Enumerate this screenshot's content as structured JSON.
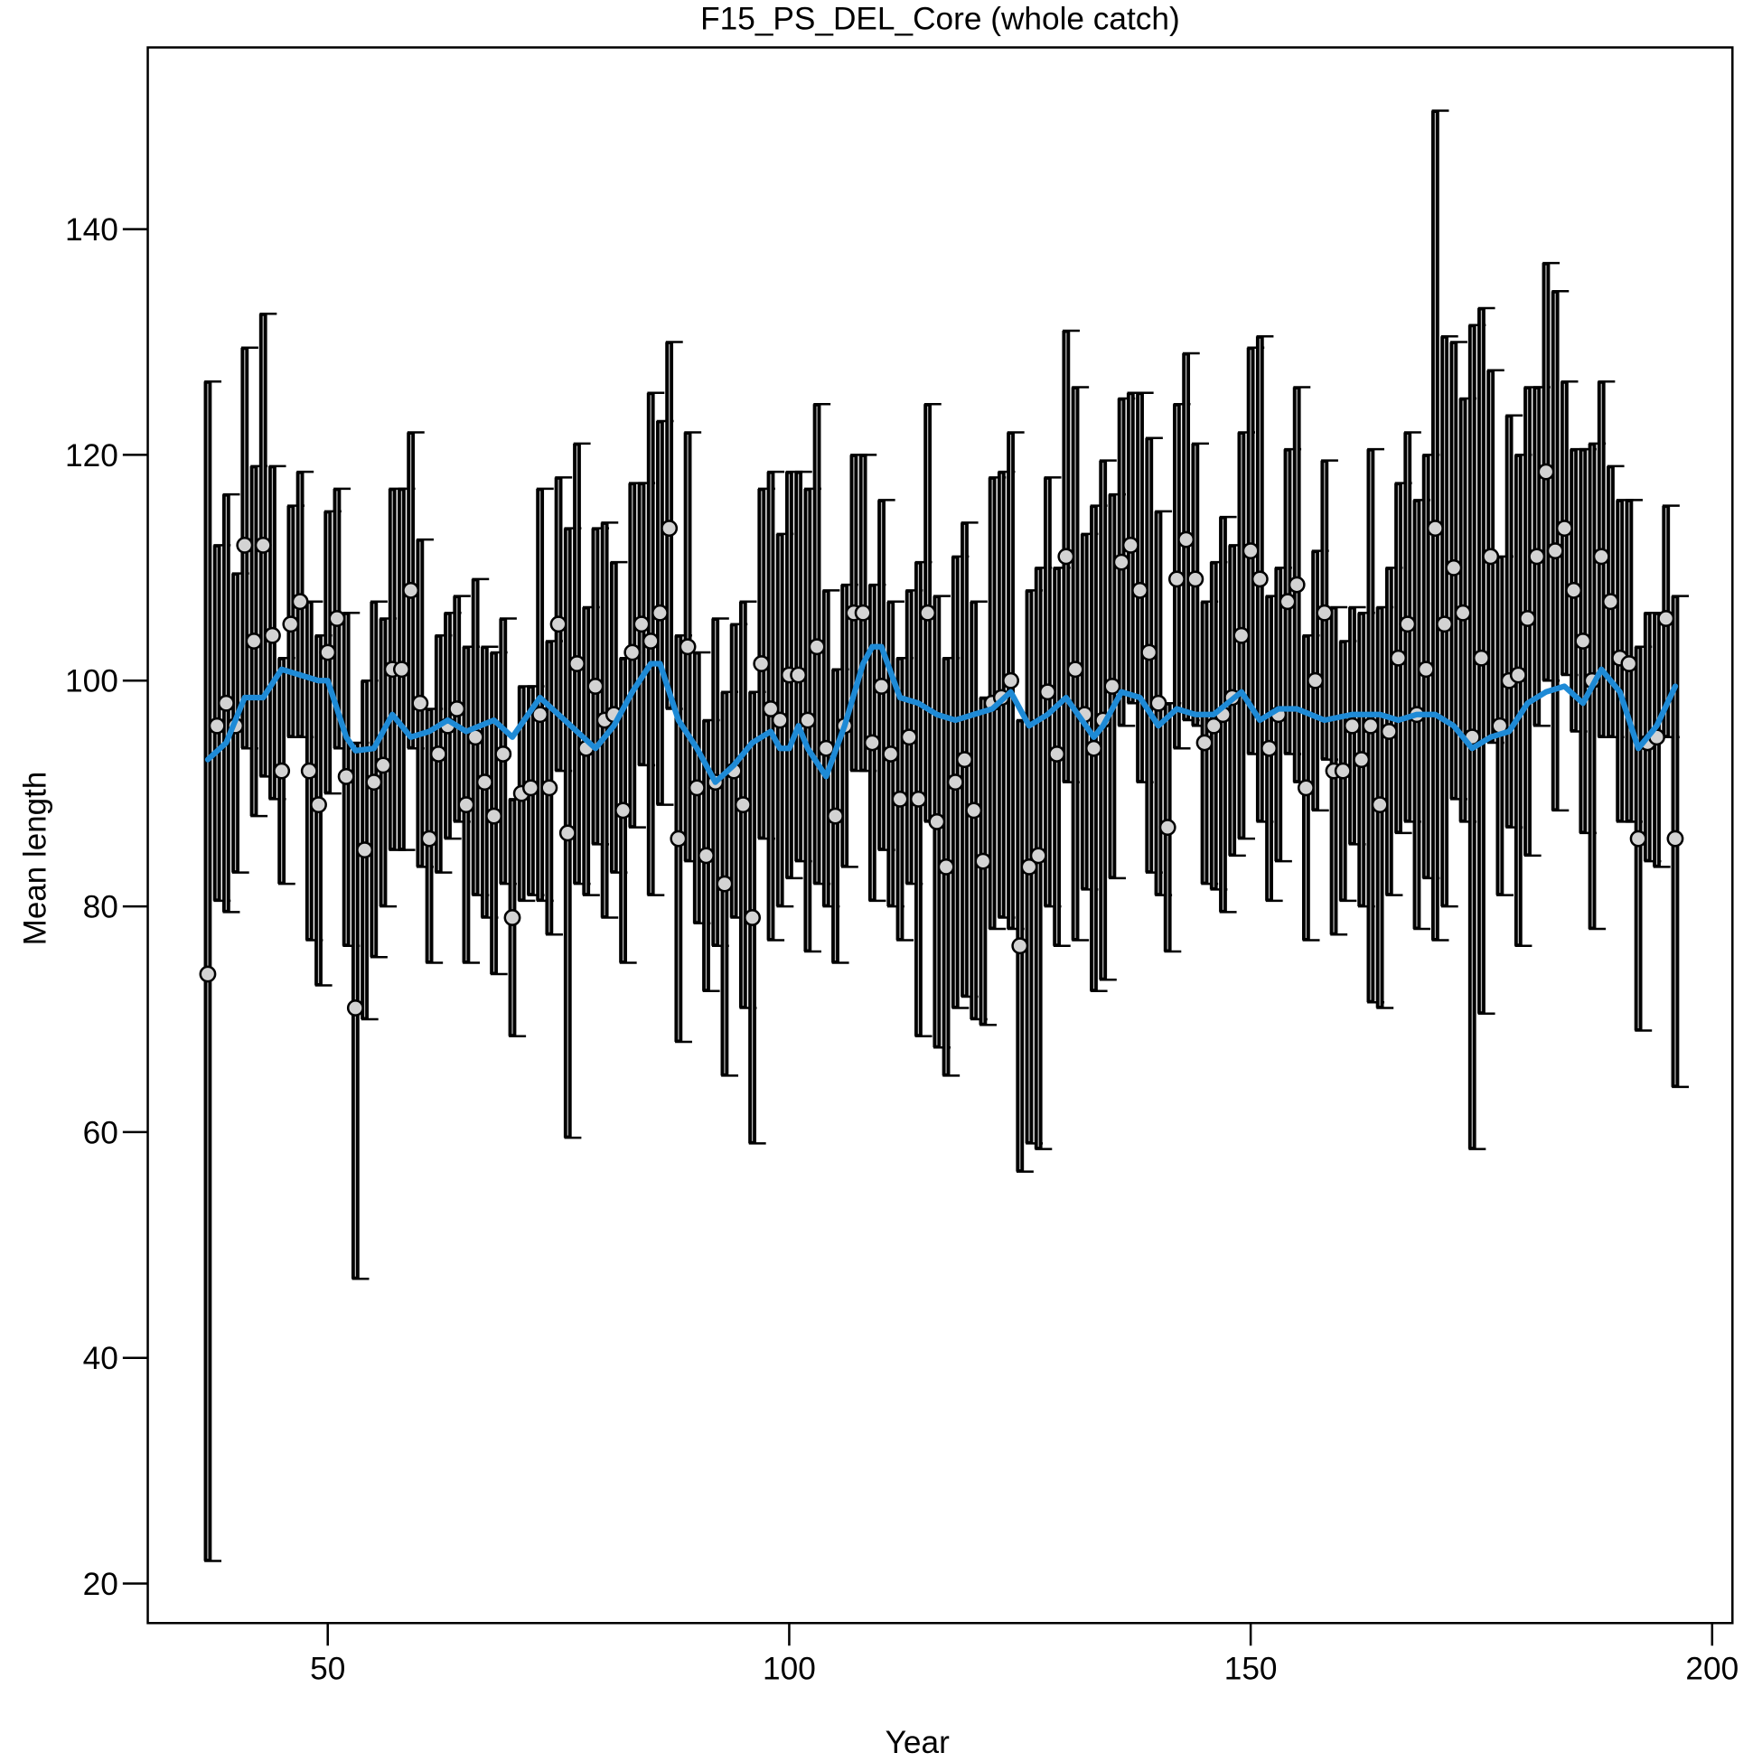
{
  "chart_data": {
    "type": "errorbar",
    "title": "F15_PS_DEL_Core (whole catch)",
    "x_label": "Year",
    "y_label": "Mean length",
    "color": "#000000",
    "point_color": "#d3d3d3",
    "x": [
      37,
      38,
      39,
      40,
      41,
      42,
      43,
      44,
      45,
      46,
      47,
      48,
      49,
      50,
      51,
      52,
      53,
      54,
      55,
      56,
      57,
      58,
      59,
      60,
      61,
      62,
      63,
      64,
      65,
      66,
      67,
      68,
      69,
      70,
      71,
      72,
      73,
      74,
      75,
      76,
      77,
      78,
      79,
      80,
      81,
      82,
      83,
      84,
      85,
      86,
      87,
      88,
      89,
      90,
      91,
      92,
      93,
      94,
      95,
      96,
      97,
      98,
      99,
      100,
      101,
      102,
      103,
      104,
      105,
      106,
      107,
      108,
      109,
      110,
      111,
      112,
      113,
      114,
      115,
      116,
      117,
      118,
      119,
      120,
      121,
      122,
      123,
      124,
      125,
      126,
      127,
      128,
      129,
      130,
      131,
      132,
      133,
      134,
      135,
      136,
      137,
      138,
      139,
      140,
      141,
      142,
      143,
      144,
      145,
      146,
      147,
      148,
      149,
      150,
      151,
      152,
      153,
      154,
      155,
      156,
      157,
      158,
      159,
      160,
      161,
      162,
      163,
      164,
      165,
      166,
      167,
      168,
      169,
      170,
      171,
      172,
      173,
      174,
      175,
      176,
      177,
      178,
      179,
      180,
      181,
      182,
      183,
      184,
      185,
      186,
      187,
      188,
      189,
      190,
      191,
      192,
      193,
      194,
      195,
      196
    ],
    "values": [
      74,
      96,
      98,
      96,
      112,
      103.5,
      112,
      104,
      92,
      105,
      107,
      92,
      89,
      102.5,
      105.5,
      91.5,
      71,
      85,
      91,
      92.5,
      101,
      101,
      108,
      98,
      86,
      93.5,
      96,
      97.5,
      89,
      95,
      91,
      88,
      93.5,
      79,
      90,
      90.5,
      97,
      90.5,
      105,
      86.5,
      101.5,
      94,
      99.5,
      96.5,
      97,
      88.5,
      102.5,
      105,
      103.5,
      106,
      113.5,
      86,
      103,
      90.5,
      84.5,
      91,
      82,
      92,
      89,
      79,
      101.5,
      97.5,
      96.5,
      100.5,
      100.5,
      96.5,
      103,
      94,
      88,
      96,
      106,
      106,
      94.5,
      99.5,
      93.5,
      89.5,
      95,
      89.5,
      106,
      87.5,
      83.5,
      91,
      93,
      88.5,
      84,
      98,
      98.5,
      100,
      76.5,
      83.5,
      84.5,
      99,
      93.5,
      111,
      101,
      97,
      94,
      96.5,
      99.5,
      110.5,
      112,
      108,
      102.5,
      98,
      87,
      109,
      112.5,
      109,
      94.5,
      96,
      97,
      98.5,
      104,
      111.5,
      109,
      94,
      97,
      107,
      108.5,
      90.5,
      100,
      106,
      92,
      92,
      96,
      93,
      96,
      89,
      95.5,
      102,
      105,
      97,
      101,
      113.5,
      105,
      110,
      106,
      95,
      102,
      111,
      96,
      100,
      100.5,
      105.5,
      111,
      118.5,
      111.5,
      113.5,
      108,
      103.5,
      100,
      111,
      107,
      102,
      101.5,
      86,
      94.5,
      95,
      105.5,
      86
    ],
    "lower": [
      22,
      80.5,
      79.5,
      83,
      94,
      88,
      91.5,
      89.5,
      82,
      95,
      95,
      77,
      73,
      90,
      94,
      76.5,
      47,
      70,
      75.5,
      80,
      85,
      85,
      94,
      83.5,
      75,
      83,
      86,
      87.5,
      75,
      81,
      79,
      74,
      82,
      68.5,
      80.5,
      81,
      80.5,
      77.5,
      92,
      59.5,
      82,
      81,
      85.5,
      79,
      83,
      75,
      87,
      92.5,
      81,
      89,
      97.5,
      68,
      84,
      78.5,
      72.5,
      76.5,
      65,
      79,
      71,
      59,
      86,
      77,
      80,
      82.5,
      84,
      76,
      82,
      80,
      75,
      83.5,
      92,
      92,
      80.5,
      85,
      80,
      77,
      82,
      68.5,
      87.5,
      67.5,
      65,
      71,
      72,
      70,
      69.5,
      78,
      79,
      78,
      56.5,
      59,
      58.5,
      80,
      76.5,
      91,
      77,
      81.5,
      72.5,
      73.5,
      82.5,
      96,
      98,
      91,
      83,
      81,
      76,
      94,
      96.5,
      96,
      82,
      81.5,
      79.5,
      84.5,
      86,
      93.5,
      87.5,
      80.5,
      84,
      93.5,
      91,
      77,
      88.5,
      93,
      77.5,
      80.5,
      85.5,
      80,
      71.5,
      71,
      81,
      86.5,
      87.5,
      78,
      82.5,
      77,
      80,
      89.5,
      87.5,
      58.5,
      70.5,
      94.5,
      81,
      87,
      76.5,
      84.5,
      96,
      100,
      88.5,
      100.5,
      95.5,
      86.5,
      78,
      95,
      95,
      87.5,
      87.5,
      69,
      84,
      83.5,
      95,
      64
    ],
    "upper": [
      126.5,
      112,
      116.5,
      109.5,
      129.5,
      119,
      132.5,
      119,
      102,
      115.5,
      118.5,
      107,
      104,
      115,
      117,
      106,
      94.5,
      100,
      107,
      105.5,
      117,
      117,
      122,
      112.5,
      97.5,
      104,
      106,
      107.5,
      103,
      109,
      103,
      102.5,
      105.5,
      89.5,
      99.5,
      99.5,
      117,
      103.5,
      118,
      113.5,
      121,
      106.5,
      113.5,
      114,
      110.5,
      102,
      117.5,
      117.5,
      125.5,
      123,
      130,
      104,
      122,
      102.5,
      96.5,
      105.5,
      99,
      105,
      107,
      99,
      117,
      118.5,
      113,
      118.5,
      118.5,
      117,
      124.5,
      108,
      101,
      108.5,
      120,
      120,
      108.5,
      116,
      107,
      102,
      108,
      110.5,
      124.5,
      107.5,
      102,
      111,
      114,
      107,
      98.5,
      118,
      118.5,
      122,
      96.5,
      108,
      110,
      118,
      110,
      131,
      126,
      113,
      115.5,
      119.5,
      116.5,
      125,
      125.5,
      125.5,
      121.5,
      115,
      98,
      124.5,
      129,
      121,
      107,
      110.5,
      114.5,
      112,
      122,
      129.5,
      130.5,
      107.5,
      110,
      120.5,
      126,
      104,
      111.5,
      119.5,
      106.5,
      103.5,
      106.5,
      106,
      120.5,
      106.5,
      110,
      117.5,
      122,
      116,
      120,
      150.5,
      130.5,
      130,
      125,
      131.5,
      133,
      127.5,
      111,
      123.5,
      120,
      126,
      126,
      137,
      134.5,
      126.5,
      120.5,
      120.5,
      121,
      126.5,
      119,
      116,
      116,
      103,
      106,
      106,
      115.5,
      107.5
    ],
    "smooth": {
      "color": "#1e8ad6",
      "x": [
        37,
        39,
        41,
        43,
        45,
        47,
        49,
        50,
        52,
        53,
        55,
        57,
        59,
        61,
        63,
        65,
        68,
        70,
        73,
        75,
        77,
        79,
        81,
        83,
        85,
        86,
        88,
        90,
        92,
        94,
        96,
        98,
        99,
        100,
        101,
        102,
        104,
        106,
        108,
        109,
        110,
        112,
        114,
        116,
        118,
        120,
        122,
        124,
        126,
        128,
        130,
        133,
        134,
        136,
        138,
        140,
        142,
        144,
        146,
        149,
        151,
        153,
        155,
        158,
        161,
        164,
        166,
        168,
        170,
        172,
        174,
        176,
        178,
        180,
        182,
        184,
        186,
        188,
        190,
        192,
        194,
        196
      ],
      "values": [
        93,
        94.5,
        98.5,
        98.5,
        101,
        100.5,
        100,
        100,
        95,
        93.8,
        94,
        97,
        95,
        95.5,
        96.5,
        95.5,
        96.5,
        95,
        98.5,
        97,
        95.5,
        94,
        96,
        99,
        101.5,
        101.5,
        96.5,
        94,
        91,
        92.5,
        94.5,
        95.5,
        94,
        94,
        96,
        94,
        91.5,
        96,
        101.5,
        103,
        103,
        98.5,
        98,
        97,
        96.5,
        97,
        97.5,
        99,
        96,
        97,
        98.5,
        95,
        96,
        99,
        98.5,
        96,
        97.5,
        97,
        97,
        99,
        96.5,
        97.5,
        97.5,
        96.5,
        97,
        97,
        96.5,
        97,
        97,
        96,
        94,
        95,
        95.5,
        98,
        99,
        99.5,
        98,
        101,
        99,
        94,
        96,
        99.5
      ]
    },
    "xlim": [
      30.5,
      202.2
    ],
    "ylim": [
      16.5,
      156.1
    ],
    "xticks": [
      50,
      100,
      150,
      200
    ],
    "yticks": [
      20,
      40,
      60,
      80,
      100,
      120,
      140
    ],
    "grid": false
  }
}
